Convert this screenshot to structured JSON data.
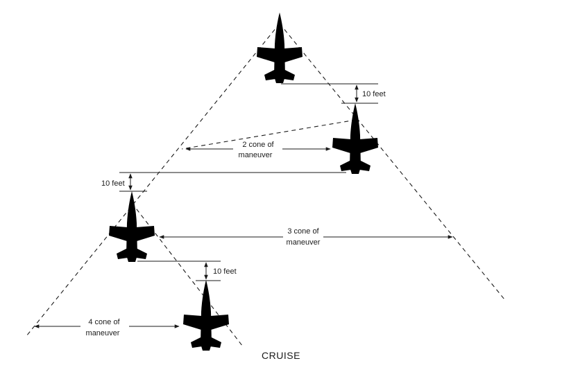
{
  "diagram": {
    "title": "CRUISE",
    "labels": {
      "cone2_line1": "2 cone of",
      "cone2_line2": "maneuver",
      "cone3_line1": "3 cone of",
      "cone3_line2": "maneuver",
      "cone4_line1": "4 cone of",
      "cone4_line2": "maneuver",
      "sep1": "10 feet",
      "sep2": "10 feet",
      "sep3": "10 feet"
    },
    "aircraft": [
      "lead",
      "aircraft-2",
      "aircraft-3",
      "aircraft-4"
    ]
  }
}
